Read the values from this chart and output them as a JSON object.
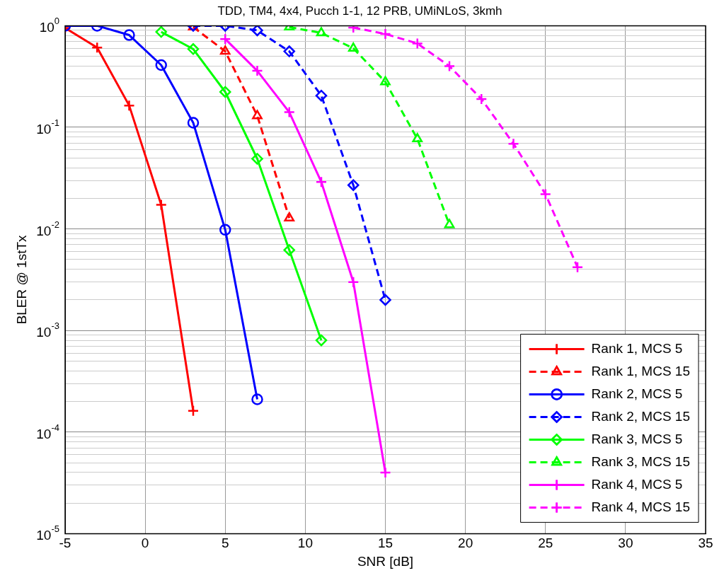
{
  "chart_data": {
    "type": "line",
    "title": "TDD, TM4, 4x4, Pucch 1-1, 12 PRB, UMiNLoS, 3kmh",
    "xlabel": "SNR [dB]",
    "ylabel": "BLER @ 1stTx",
    "log": "y",
    "grid": true,
    "legend": "bottom right",
    "xlim": [
      -5,
      35
    ],
    "xticks": [
      -5,
      0,
      5,
      10,
      15,
      20,
      25,
      30,
      35
    ],
    "ylim": [
      1e-05,
      1
    ],
    "yticks": [
      {
        "value": 1e-05,
        "label": "10$^{-5}$"
      },
      {
        "value": 2e-05,
        "label": null
      },
      {
        "value": 3e-05,
        "label": null
      },
      {
        "value": 4e-05,
        "label": null
      },
      {
        "value": 5e-05,
        "label": null
      },
      {
        "value": 6e-05,
        "label": null
      },
      {
        "value": 7e-05,
        "label": null
      },
      {
        "value": 8e-05,
        "label": null
      },
      {
        "value": 9e-05,
        "label": null
      },
      {
        "value": 0.0001,
        "label": "10$^{-4}$"
      },
      {
        "value": 0.0002,
        "label": null
      },
      {
        "value": 0.0003,
        "label": null
      },
      {
        "value": 0.0004,
        "label": null
      },
      {
        "value": 0.0005,
        "label": null
      },
      {
        "value": 0.0006,
        "label": null
      },
      {
        "value": 0.0007,
        "label": null
      },
      {
        "value": 0.0008,
        "label": null
      },
      {
        "value": 0.0009,
        "label": null
      },
      {
        "value": 0.001,
        "label": "10$^{-3}$"
      },
      {
        "value": 0.002,
        "label": null
      },
      {
        "value": 0.003,
        "label": null
      },
      {
        "value": 0.004,
        "label": null
      },
      {
        "value": 0.005,
        "label": null
      },
      {
        "value": 0.006,
        "label": null
      },
      {
        "value": 0.007,
        "label": null
      },
      {
        "value": 0.008,
        "label": null
      },
      {
        "value": 0.009,
        "label": null
      },
      {
        "value": 0.01,
        "label": "10$^{-2}$"
      },
      {
        "value": 0.02,
        "label": null
      },
      {
        "value": 0.03,
        "label": null
      },
      {
        "value": 0.04,
        "label": null
      },
      {
        "value": 0.05,
        "label": null
      },
      {
        "value": 0.06,
        "label": null
      },
      {
        "value": 0.07,
        "label": null
      },
      {
        "value": 0.08,
        "label": null
      },
      {
        "value": 0.09,
        "label": null
      },
      {
        "value": 0.1,
        "label": "10$^{-1}$"
      },
      {
        "value": 0.2,
        "label": null
      },
      {
        "value": 0.3,
        "label": null
      },
      {
        "value": 0.4,
        "label": null
      },
      {
        "value": 0.5,
        "label": null
      },
      {
        "value": 0.6,
        "label": null
      },
      {
        "value": 0.7,
        "label": null
      },
      {
        "value": 0.8,
        "label": null
      },
      {
        "value": 0.9,
        "label": null
      },
      {
        "value": 1,
        "label": "10$^{0}$"
      }
    ],
    "series": [
      {
        "name": "Rank 1, MCS 5",
        "color": "#ff0000",
        "marker": "cross",
        "line_style": "solid",
        "x": [
          -5,
          -3,
          -1,
          1,
          3
        ],
        "values": [
          0.95,
          0.61,
          0.164,
          0.0173,
          0.000162
        ]
      },
      {
        "name": "Rank 1, MCS 15",
        "color": "#ff0000",
        "marker": "triangle",
        "line_style": "dashed",
        "x": [
          3,
          5,
          7,
          9
        ],
        "values": [
          0.97,
          0.56,
          0.13,
          0.0128
        ]
      },
      {
        "name": "Rank 2, MCS 5",
        "color": "#0000ff",
        "marker": "circle",
        "line_style": "solid",
        "x": [
          -5,
          -3,
          -1,
          1,
          3,
          5,
          7
        ],
        "values": [
          1,
          1,
          0.81,
          0.41,
          0.111,
          0.0098,
          0.00021
        ]
      },
      {
        "name": "Rank 2, MCS 15",
        "color": "#0000ff",
        "marker": "diamond",
        "line_style": "dashed",
        "x": [
          3,
          5,
          7,
          9,
          11,
          13,
          15
        ],
        "values": [
          1,
          1,
          0.9,
          0.56,
          0.205,
          0.027,
          0.002
        ]
      },
      {
        "name": "Rank 3, MCS 5",
        "color": "#00ff00",
        "marker": "diamond",
        "line_style": "solid",
        "x": [
          1,
          3,
          5,
          7,
          9,
          11
        ],
        "values": [
          0.87,
          0.59,
          0.223,
          0.049,
          0.0062,
          0.0008
        ]
      },
      {
        "name": "Rank 3, MCS 15",
        "color": "#00ff00",
        "marker": "triangle",
        "line_style": "dashed",
        "x": [
          9,
          11,
          13,
          15,
          17,
          19
        ],
        "values": [
          0.97,
          0.85,
          0.6,
          0.28,
          0.077,
          0.011
        ]
      },
      {
        "name": "Rank 4, MCS 5",
        "color": "#ff00ff",
        "marker": "cross",
        "line_style": "solid",
        "x": [
          5,
          7,
          9,
          11,
          13,
          15
        ],
        "values": [
          0.74,
          0.36,
          0.141,
          0.029,
          0.003,
          4e-05
        ]
      },
      {
        "name": "Rank 4, MCS 15",
        "color": "#ff00ff",
        "marker": "cross",
        "line_style": "dashed",
        "x": [
          13,
          15,
          17,
          19,
          21,
          23,
          25,
          27
        ],
        "values": [
          0.96,
          0.83,
          0.67,
          0.4,
          0.19,
          0.069,
          0.022,
          0.0042
        ]
      }
    ]
  }
}
